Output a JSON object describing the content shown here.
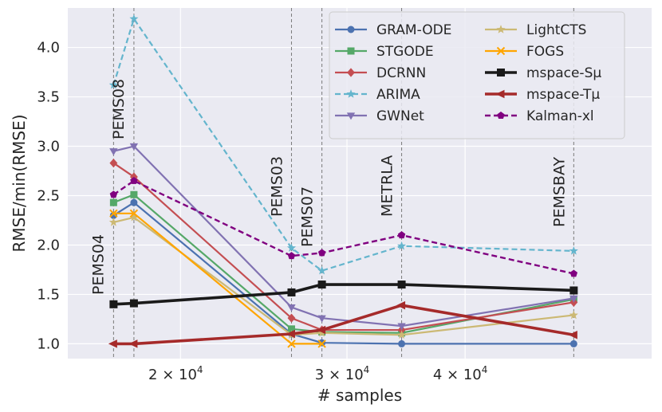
{
  "chart_data": {
    "type": "line",
    "xlabel": "# samples",
    "ylabel": "RMSE/min(RMSE)",
    "x_scale": "log",
    "xlim": [
      15200,
      63000
    ],
    "ylim": [
      0.85,
      4.4
    ],
    "grid": true,
    "legend_position": "top-right",
    "y_ticks": [
      1.0,
      1.5,
      2.0,
      2.5,
      3.0,
      3.5,
      4.0
    ],
    "y_tick_labels": [
      "1.0",
      "1.5",
      "2.0",
      "2.5",
      "3.0",
      "3.5",
      "4.0"
    ],
    "x_ticks": [
      20000,
      30000,
      40000
    ],
    "x_tick_labels": [
      {
        "base": "2 × 10",
        "exp": "4"
      },
      {
        "base": "3 × 10",
        "exp": "4"
      },
      {
        "base": "4 × 10",
        "exp": "4"
      }
    ],
    "datasets": [
      {
        "name": "PEMS04",
        "samples": 16992
      },
      {
        "name": "PEMS08",
        "samples": 17856
      },
      {
        "name": "PEMS03",
        "samples": 26208
      },
      {
        "name": "PEMS07",
        "samples": 28224
      },
      {
        "name": "METRLA",
        "samples": 34272
      },
      {
        "name": "PEMSBAY",
        "samples": 52116
      }
    ],
    "x": [
      16992,
      17856,
      26208,
      28224,
      34272,
      52116
    ],
    "series": [
      {
        "name": "GRAM-ODE",
        "color": "#4c72b0",
        "marker": "circle",
        "dash": "solid",
        "width": 2.2,
        "values": [
          2.3,
          2.43,
          1.1,
          1.01,
          1.0,
          1.0
        ]
      },
      {
        "name": "STGODE",
        "color": "#55a868",
        "marker": "square",
        "dash": "solid",
        "width": 2.2,
        "values": [
          2.43,
          2.51,
          1.15,
          1.12,
          1.11,
          1.45
        ]
      },
      {
        "name": "DCRNN",
        "color": "#c44e52",
        "marker": "diamond",
        "dash": "solid",
        "width": 2.2,
        "values": [
          2.83,
          2.69,
          1.26,
          1.14,
          1.14,
          1.42
        ]
      },
      {
        "name": "ARIMA",
        "color": "#64b5cd",
        "marker": "star",
        "dash": "dashed",
        "width": 2.2,
        "values": [
          3.62,
          4.29,
          1.97,
          1.74,
          1.99,
          1.94
        ]
      },
      {
        "name": "GWNet",
        "color": "#8172b2",
        "marker": "triangle-down",
        "dash": "solid",
        "width": 2.2,
        "values": [
          2.95,
          3.0,
          1.37,
          1.26,
          1.18,
          1.46
        ]
      },
      {
        "name": "LightCTS",
        "color": "#ccb974",
        "marker": "star",
        "dash": "solid",
        "width": 2.2,
        "values": [
          2.23,
          2.28,
          1.09,
          1.11,
          1.09,
          1.29
        ]
      },
      {
        "name": "FOGS",
        "color": "#ffa500",
        "marker": "x",
        "dash": "solid",
        "width": 2.2,
        "values": [
          2.32,
          2.32,
          1.0,
          1.0,
          null,
          null
        ]
      },
      {
        "name": "mspace-Sμ",
        "color": "#1a1a1a",
        "marker": "square",
        "dash": "solid",
        "width": 3.6,
        "values": [
          1.4,
          1.41,
          1.52,
          1.6,
          1.6,
          1.54
        ]
      },
      {
        "name": "mspace-Tμ",
        "color": "#a52a2a",
        "marker": "arrow-left",
        "dash": "solid",
        "width": 3.6,
        "values": [
          1.0,
          1.0,
          1.1,
          1.14,
          1.39,
          1.09
        ]
      },
      {
        "name": "Kalman-xl",
        "color": "#800080",
        "marker": "pentagon",
        "dash": "dashed",
        "width": 2.4,
        "values": [
          2.51,
          2.65,
          1.89,
          1.92,
          2.1,
          1.71
        ]
      }
    ],
    "legend": [
      {
        "series": "GRAM-ODE",
        "label": "GRAM-ODE"
      },
      {
        "series": "LightCTS",
        "label": "LightCTS"
      },
      {
        "series": "STGODE",
        "label": "STGODE"
      },
      {
        "series": "FOGS",
        "label": "FOGS"
      },
      {
        "series": "DCRNN",
        "label": "DCRNN"
      },
      {
        "series": "mspace-Sμ",
        "label": "mspace-Sμ"
      },
      {
        "series": "ARIMA",
        "label": "ARIMA"
      },
      {
        "series": "mspace-Tμ",
        "label": "mspace-Tμ"
      },
      {
        "series": "GWNet",
        "label": "GWNet"
      },
      {
        "series": "Kalman-xl",
        "label": "Kalman-xl"
      }
    ]
  }
}
